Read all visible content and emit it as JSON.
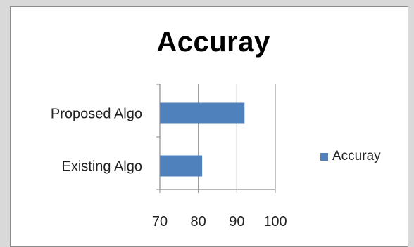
{
  "chart_data": {
    "type": "bar",
    "orientation": "horizontal",
    "title": "Accuray",
    "categories": [
      "Proposed Algo",
      "Existing Algo"
    ],
    "series": [
      {
        "name": "Accuray",
        "values": [
          92,
          81
        ],
        "color": "#4f81bd"
      }
    ],
    "xlim": [
      70,
      100
    ],
    "x_ticks": [
      70,
      80,
      90,
      100
    ],
    "grid": "vertical",
    "legend": "right",
    "xlabel": "",
    "ylabel": ""
  }
}
